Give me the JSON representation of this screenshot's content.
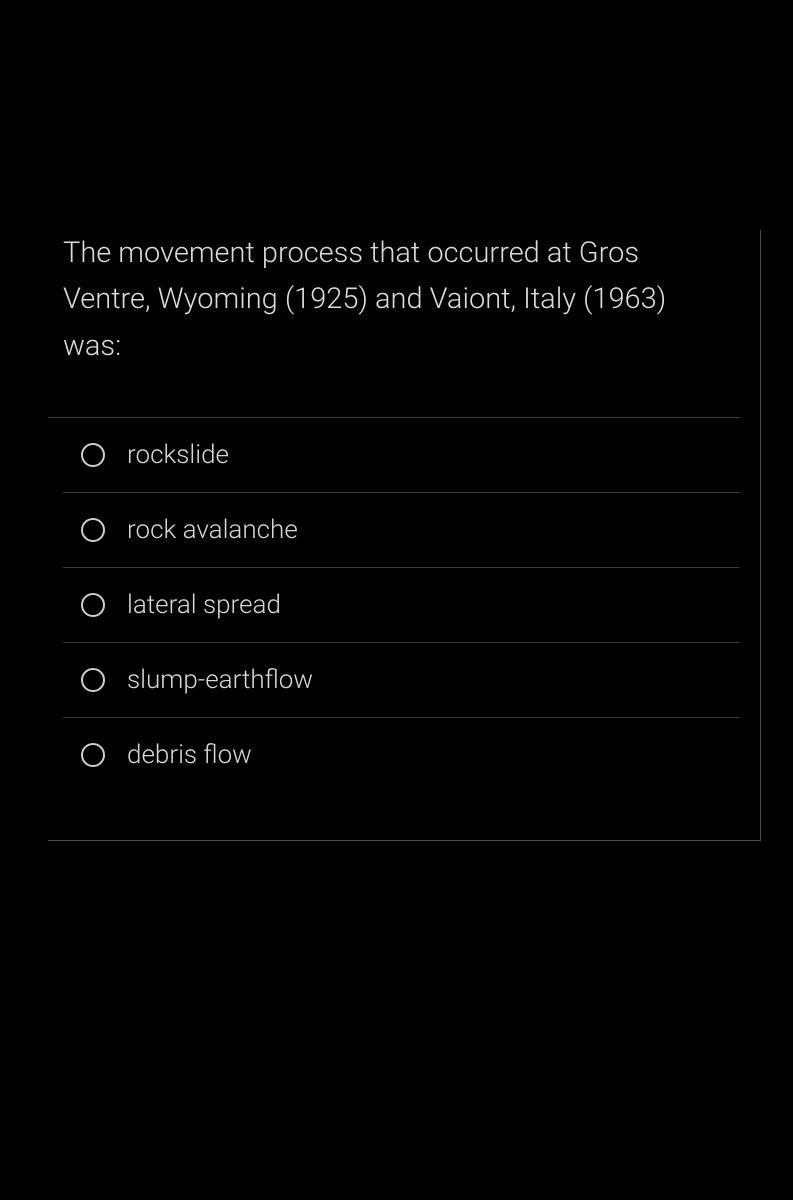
{
  "question": {
    "text": "The movement process that occurred at Gros Ventre, Wyoming (1925) and Vaiont, Italy (1963) was:",
    "options": [
      {
        "label": "rockslide"
      },
      {
        "label": "rock avalanche"
      },
      {
        "label": "lateral spread"
      },
      {
        "label": "slump-earthflow"
      },
      {
        "label": "debris flow"
      }
    ]
  },
  "colors": {
    "background": "#000000",
    "text": "#d8d8d8",
    "border": "#3a3a3a",
    "outer_border": "#4a4a4a",
    "radio_border": "#cfcfcf"
  }
}
